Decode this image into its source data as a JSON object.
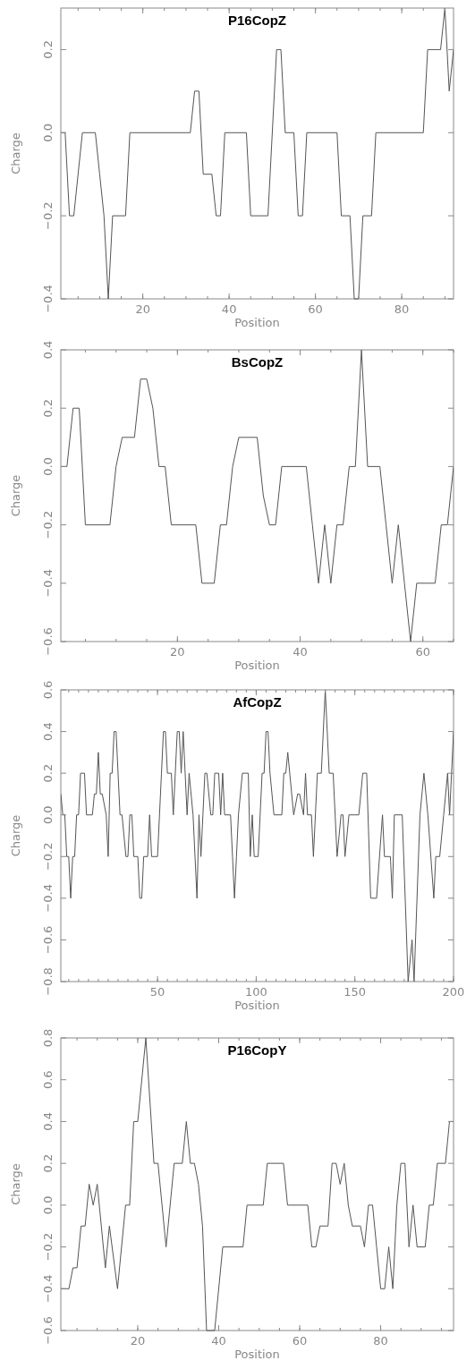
{
  "chart_data": [
    {
      "type": "line",
      "title": "P16CopZ",
      "xlabel": "Position",
      "ylabel": "Charge",
      "color": "#555555",
      "x": [
        1,
        2,
        3,
        4,
        6,
        9,
        10,
        11,
        12,
        13,
        16,
        17,
        31,
        32,
        33,
        34,
        36,
        37,
        38,
        39,
        44,
        45,
        49,
        51,
        52,
        53,
        55,
        56,
        57,
        58,
        65,
        66,
        68,
        69,
        70,
        71,
        73,
        74,
        85,
        86,
        89,
        90,
        91,
        92
      ],
      "values": [
        0,
        0,
        -0.2,
        -0.2,
        0,
        0,
        -0.1,
        -0.2,
        -0.4,
        -0.2,
        -0.2,
        0,
        0,
        0.1,
        0.1,
        -0.1,
        -0.1,
        -0.2,
        -0.2,
        0,
        0,
        -0.2,
        -0.2,
        0.2,
        0.2,
        0,
        0,
        -0.2,
        -0.2,
        0,
        0,
        -0.2,
        -0.2,
        -0.4,
        -0.4,
        -0.2,
        -0.2,
        0,
        0,
        0.2,
        0.2,
        0.3,
        0.1,
        0.2
      ],
      "xlim": [
        1,
        92
      ],
      "ylim": [
        -0.4,
        0.3
      ],
      "xticks": [
        20,
        40,
        60,
        80
      ],
      "yticks": [
        {
          "value": -0.4,
          "label": "−0.4"
        },
        {
          "value": -0.2,
          "label": "−0.2"
        },
        {
          "value": 0,
          "label": "0.0"
        },
        {
          "value": 0.2,
          "label": "0.2"
        }
      ]
    },
    {
      "type": "line",
      "title": "BsCopZ",
      "xlabel": "Position",
      "ylabel": "Charge",
      "color": "#555555",
      "x": [
        1,
        2,
        3,
        4,
        5,
        9,
        10,
        11,
        13,
        14,
        15,
        16,
        17,
        18,
        19,
        23,
        24,
        26,
        27,
        28,
        29,
        30,
        33,
        34,
        35,
        36,
        37,
        41,
        42,
        43,
        44,
        45,
        46,
        47,
        48,
        49,
        50,
        51,
        53,
        54,
        55,
        56,
        57,
        58,
        59,
        62,
        63,
        64,
        65
      ],
      "values": [
        0,
        0,
        0.2,
        0.2,
        -0.2,
        -0.2,
        0,
        0.1,
        0.1,
        0.3,
        0.3,
        0.2,
        0,
        0,
        -0.2,
        -0.2,
        -0.4,
        -0.4,
        -0.2,
        -0.2,
        0,
        0.1,
        0.1,
        -0.1,
        -0.2,
        -0.2,
        0,
        0,
        -0.2,
        -0.4,
        -0.2,
        -0.4,
        -0.2,
        -0.2,
        0,
        0,
        0.4,
        0,
        0,
        -0.2,
        -0.4,
        -0.2,
        -0.4,
        -0.6,
        -0.4,
        -0.4,
        -0.2,
        -0.2,
        0
      ],
      "xlim": [
        1,
        65
      ],
      "ylim": [
        -0.6,
        0.4
      ],
      "xticks": [
        20,
        40,
        60
      ],
      "yticks": [
        {
          "value": -0.6,
          "label": "−0.6"
        },
        {
          "value": -0.4,
          "label": "−0.4"
        },
        {
          "value": -0.2,
          "label": "−0.2"
        },
        {
          "value": 0,
          "label": "0.0"
        },
        {
          "value": 0.2,
          "label": "0.2"
        },
        {
          "value": 0.4,
          "label": "0.4"
        }
      ]
    },
    {
      "type": "line",
      "title": "AfCopZ",
      "xlabel": "Position",
      "ylabel": "Charge",
      "color": "#555555",
      "x": [
        1,
        2,
        3,
        4,
        5,
        6,
        7,
        8,
        9,
        10,
        11,
        13,
        14,
        17,
        18,
        19,
        20,
        21,
        22,
        24,
        25,
        26,
        27,
        28,
        29,
        31,
        32,
        34,
        35,
        36,
        37,
        38,
        40,
        41,
        42,
        43,
        45,
        46,
        47,
        50,
        52,
        53,
        54,
        55,
        57,
        58,
        59,
        60,
        61,
        62,
        63,
        64,
        65,
        66,
        68,
        70,
        71,
        72,
        73,
        74,
        75,
        77,
        78,
        79,
        81,
        82,
        83,
        84,
        87,
        88,
        89,
        90,
        91,
        93,
        96,
        97,
        98,
        99,
        101,
        103,
        104,
        105,
        106,
        107,
        109,
        113,
        114,
        115,
        116,
        117,
        119,
        121,
        122,
        124,
        125,
        126,
        128,
        129,
        131,
        133,
        135,
        137,
        139,
        141,
        143,
        144,
        145,
        147,
        152,
        154,
        156,
        158,
        161,
        164,
        165,
        168,
        169,
        170,
        174,
        177,
        179,
        180,
        183,
        185,
        187,
        190,
        191,
        193,
        195,
        197,
        198,
        199,
        200
      ],
      "values": [
        0.1,
        0,
        0,
        -0.2,
        -0.2,
        -0.4,
        -0.2,
        -0.2,
        0,
        0,
        0.2,
        0.2,
        0,
        0,
        0.1,
        0.1,
        0.3,
        0.1,
        0.1,
        0,
        -0.2,
        0.2,
        0.2,
        0.4,
        0.4,
        0,
        0,
        -0.2,
        -0.2,
        0,
        0,
        -0.2,
        -0.2,
        -0.4,
        -0.4,
        -0.2,
        -0.2,
        0,
        -0.2,
        -0.2,
        0.2,
        0.4,
        0.4,
        0.2,
        0.2,
        0,
        0.2,
        0.4,
        0.4,
        0.2,
        0.4,
        0.2,
        0,
        0.2,
        0,
        -0.4,
        0,
        -0.2,
        0,
        0.2,
        0.2,
        0,
        0,
        0.2,
        0.2,
        0,
        0.2,
        0,
        0,
        -0.2,
        -0.4,
        -0.2,
        0,
        0.2,
        0.2,
        -0.2,
        0,
        -0.2,
        -0.2,
        0.2,
        0.2,
        0.4,
        0.4,
        0.2,
        0,
        0,
        0.2,
        0.2,
        0.3,
        0.2,
        0,
        0.1,
        0.1,
        0,
        0.2,
        0,
        0,
        -0.2,
        0.2,
        0.2,
        0.6,
        0.2,
        0.2,
        -0.2,
        0,
        0,
        -0.2,
        0,
        0,
        0.2,
        0.2,
        -0.4,
        -0.4,
        0,
        -0.2,
        -0.2,
        -0.4,
        0,
        0,
        -0.8,
        -0.6,
        -0.8,
        0,
        0.2,
        0,
        -0.4,
        -0.2,
        -0.2,
        0,
        0.2,
        0,
        0.2,
        0.4
      ],
      "xlim": [
        1,
        200
      ],
      "ylim": [
        -0.8,
        0.6
      ],
      "xticks": [
        50,
        100,
        150,
        200
      ],
      "yticks": [
        {
          "value": -0.8,
          "label": "−0.8"
        },
        {
          "value": -0.6,
          "label": "−0.6"
        },
        {
          "value": -0.4,
          "label": "−0.4"
        },
        {
          "value": -0.2,
          "label": "−0.2"
        },
        {
          "value": 0,
          "label": "0.0"
        },
        {
          "value": 0.2,
          "label": "0.2"
        },
        {
          "value": 0.4,
          "label": "0.4"
        },
        {
          "value": 0.6,
          "label": "0.6"
        }
      ]
    },
    {
      "type": "line",
      "title": "P16CopY",
      "xlabel": "Position",
      "ylabel": "Charge",
      "color": "#555555",
      "x": [
        1,
        3,
        4,
        5,
        6,
        7,
        8,
        9,
        10,
        12,
        13,
        15,
        17,
        18,
        19,
        20,
        22,
        24,
        25,
        27,
        29,
        31,
        32,
        33,
        34,
        35,
        36,
        37,
        38,
        39,
        41,
        46,
        47,
        51,
        52,
        56,
        57,
        62,
        63,
        64,
        65,
        67,
        68,
        69,
        70,
        71,
        72,
        73,
        75,
        76,
        77,
        78,
        79,
        80,
        81,
        82,
        83,
        84,
        85,
        86,
        87,
        88,
        89,
        91,
        92,
        93,
        94,
        96,
        97,
        98
      ],
      "values": [
        -0.4,
        -0.4,
        -0.3,
        -0.3,
        -0.1,
        -0.1,
        0.1,
        0,
        0.1,
        -0.3,
        -0.1,
        -0.4,
        0,
        0,
        0.4,
        0.4,
        0.8,
        0.2,
        0.2,
        -0.2,
        0.2,
        0.2,
        0.4,
        0.2,
        0.2,
        0.1,
        -0.1,
        -0.6,
        -0.6,
        -0.6,
        -0.2,
        -0.2,
        0,
        0,
        0.2,
        0.2,
        0,
        0,
        -0.2,
        -0.2,
        -0.1,
        -0.1,
        0.2,
        0.2,
        0.1,
        0.2,
        0,
        -0.1,
        -0.1,
        -0.2,
        0,
        0,
        -0.2,
        -0.4,
        -0.4,
        -0.2,
        -0.4,
        0,
        0.2,
        0.2,
        -0.2,
        0,
        -0.2,
        -0.2,
        0,
        0,
        0.2,
        0.2,
        0.4,
        0.4
      ],
      "xlim": [
        1,
        98
      ],
      "ylim": [
        -0.6,
        0.8
      ],
      "xticks": [
        20,
        40,
        60,
        80
      ],
      "yticks": [
        {
          "value": -0.6,
          "label": "−0.6"
        },
        {
          "value": -0.4,
          "label": "−0.4"
        },
        {
          "value": -0.2,
          "label": "−0.2"
        },
        {
          "value": 0,
          "label": "0.0"
        },
        {
          "value": 0.2,
          "label": "0.2"
        },
        {
          "value": 0.4,
          "label": "0.4"
        },
        {
          "value": 0.6,
          "label": "0.6"
        },
        {
          "value": 0.8,
          "label": "0.8"
        }
      ]
    }
  ]
}
